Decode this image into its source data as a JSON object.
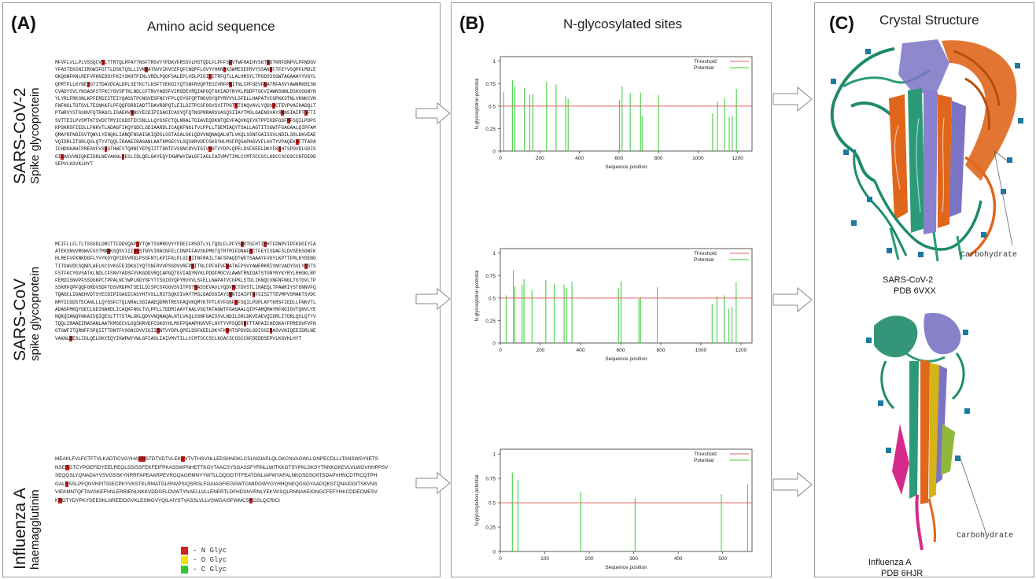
{
  "panels": {
    "a": {
      "letter": "(A)",
      "title": "Amino acid sequence"
    },
    "b": {
      "letter": "(B)",
      "title": "N-glycosylated sites"
    },
    "c": {
      "letter": "(C)",
      "title": "Crystal Structure"
    }
  },
  "proteins": [
    {
      "name": "SARS-CoV-2",
      "subtitle": "Spike glycoprotein"
    },
    {
      "name": "SARS-CoV",
      "subtitle": "spike glycoprotein"
    },
    {
      "name": "Influenza A",
      "subtitle": "haemagglutinin"
    }
  ],
  "sequences": {
    "sars2": [
      "MFVFLVLLPLVSSQCVNLTTRTQLPPAYTNSFTRGVYYPDKVFRSSVLHSTQDLFLPFFSNVTWFHAIHVSGTNGTKRFDNPVLPFNDGV",
      "YFASTEKSNIIRGWIFGTTLDSKTQSLLIVNNATNVVIKVCEFQFCNDPFLGVYYHKNNKSWMESEFRVYSSANNCTFEYVSQPFLMDLE",
      "GKQGNFKNLREFVFKNIDGYFKIYSKHTPINLVRDLPQGFSALEPLVDLPIGINITRFQTLLALHRSYLTPGDSSSGWTAGAAAYYVGYL",
      "QPRTFLLKYNENGTITDAVDCALDPLSETKCTLKSFTVEKGIYQTSNFRVQPTESIVRFPNITNLCPFGEVFNATRFASVYAWNRKRISN",
      "CVADYSVLYNSASFSTFKCYGVSPTKLNDLCFTNVYADSFVIRGDEVRQIAPGQTGKIADYNYKLPDDFTGCVIAWNSNNLDSKVGGNYN",
      "YLYRLFRKSNLKPFERDISTEIYQAGSTPCNGVEGFNCYFPLQSYGFQPTNGVGYQPYRVVVLSFELLHAPATVCGPKKSTNLVKNKCVN",
      "FNFNGLTGTGVLTESNKKFLPFQQFGRDIADTTDAVRDPQTLEILDITPCSFGGVSVITPGTNTSNQVAVLYQDVNCTEVPVAIHADQLT",
      "PTWRVYSTGSNVFQTRAGCLIGAEHVNNSYECDIPIGAGICASYQTQTNSPRRARSVASQSIIAYTMSLGAENSVAYSNNSIAIPTNFTI",
      "SVTTEILPVSMTKTSVDCTMYICGDSTECSNLLLQYGSFCTQLNRALTGIAVEQDKNTQEVFAQVKQIYKTPPIKDFGGFNFSQILPDPS",
      "KPSKRSFIEDLLFNKVTLADAGFIKQYGDCLGDIAARDLICAQKFNGLTVLPPLLTDEMIAQYTSALLAGTITSGWTFGAGAALQIPFAM",
      "QMAYRFNGIGVTQNVLYENQKLIANQFNSAIGKIQDSLSSTASALGKLQDVVNQNAQALNTLVKQLSSNFGAISSVLNDILSRLDKVEAE",
      "VQIDRLITGRLQSLQTYVTQQLIRAAEIRASANLAATKMSECVLGQSKRVDFCGKGYHLMSFPQSAPHGVVFLHVTYVPAQEKNFTTAPA",
      "ICHDGKAHFPREGVFVSNGTHWFVTQRNFYEPQIITTDNTFVSGNCDVVIGIVNNTVYDPLQPELDSFKEELDKYFKNHTSPDVDLGDIS",
      "GINASVVNIQKEIDRLNEVAKNLNESLIDLQELGKYEQYIKWPWYIWLGFIAGLIAIVMVTIMLCCMTSCCSCLKGCCSCGSCCKFDEDD",
      "SEPVLKGVKLHYT"
    ],
    "sars1": [
      "MFIFLLFLTLTSGSDLDRCTTFDDVQAPNYTQHTSSMRGVYYPDEIFRSDTLYLTQDLFLPFYSNVTGFHTINHTFDNPVIPFKDGIYFA",
      "ATEKSNVVRGWVFGSTMNNKSQSVIIINNSTNVVIRACNFELCDNPFFAVSKPMGTQTHTMIFDNAFNCTFEYISDAFSLDVSEKSGNFK",
      "HLREFVFKNKDGFLYVYKGYQPIDVVRDLPSGFNTLKPIFKLPLGINITNFRAILTAFSPAQDTWGTSAAAYFVGYLKPTTFMLKYDENG",
      "TITDAVDCSQNPLAELKCSVKSFEIDKGIYQTSNFRVVPSGDVVRFPNITNLCPFGEVFNATKFPSVYAWERKRISNCVADYSVLYNSTS",
      "FSTFKCYGVSATKLNDLCFSNVYADSFVVKGDDVRQIAPGQTGVIADYNYKLPDDFMGCVLAWNTRNIDATSTGNYNYKYRYLRHGKLRP",
      "FERDISNVPFSSDGKPCTPPALNCYWPLNDYGFYTTSGIGYQPYRVVVLSFELLNAPATVCGPKLSTDLIKNQCVNFNFNGLTGTGVLTP",
      "SSKRFQPFQQFGRDVSDFTDSVRDPKTSEILDISPCSFGGVSVITPGTNASSEVAVLYQDVNCTDVSTLIHAEQLTPAWRIYSTGNNVFQ",
      "TQAGCLIGAEHVDTSYECDIPIGAGICASYHTVSLLRSTSQKSIVAYTMSLGADSSIAYSNNTIAIPTNFSISITTEVMPVSMAKTSVDC",
      "NMYICGDSTECANLLLQYGSFCTQLNRALSGIAAEQDRNTREVFAQVKQMYKTPTLKYFGGFNFSQILPDPLKPTKRSFIEDLLFNKVTL",
      "ADAGFMKQYGECLGDINARDLICAQKFNGLTVLPPLLTDDMIAAYTAALVSGTATAGWTFGAGAALQIPFAMQMAYRFNGIGVTQNVLYE",
      "NQKQIANQFNKAISQIQESLTTTSTALGKLQDVVNQNAQALNTLVKQLSSNFGAISSVLNDILSRLDKVEAEVQIDRLITGRLQSLQTYV",
      "TQQLIRAAEIRASANLAATKMSECVLGQSKRVDFCGKGYHLMSFPQAAPHGVVFLHVTYVPSQERNFTTAPAICHEGKAYFPREGVFVFN",
      "GTSWFITQRNFFSPQIITTDNTFVSGNCDVVIGIINNTVYDPLQPELDSFKEELDKYFKNHTSPDVDLGDISGINASVVNIQEEIDRLNE",
      "VAKNLNESLIDLQELGKYEQYIKWPWYVWLGFIAGLIAIVMVTILLCCMTSCCSCLKGACSCGSCCKFDEDDSEPVLKGVKLHYT"
    ],
    "flu": [
      "MEAKLFVLFCTFTVLKADTICVGYHANNSTDTVDTVLEKNVTVTHSVNLLEDSHNGKLCSLNGIAPLQLGKCNVAGWLLGNPECDLLLTANSWSYIIETS",
      "NSENGTCYPGEFIDYEELREQLSSISSFEKFEIFPKASSWPNHETTKGVTAACSYSGASSFYRNLLWITKKGTSYPKLSKSYTNNKGKEVLVLWGVHHPPSV",
      "SEQQSLYQNADAYVSVGSSKYNRRFAPEAARPEVRGQAGRMNYYWTLLDQGDTITFEATGNLIAPWYAFALNKGSDSGIITSDAPVHNCDTRCQTPH",
      "GALNSSLPFQNVHPITIGECPKYVKSTKLRMATGLRNVPSIQSRGLFGAIAGFIEGGWTGMIDGWYGYHHQNEQGSGYAADQKSTQNAIDGITSKVNS",
      "VIEKMNTQFTAVGKEFNNLERRIENLNKKVDDGFLDVWTYNAELLVLLENERTLDFHDSNVRNLYEKVKSQLRNNAKEIGNGCFEFYHKCDDECMESV",
      "KNGTYDYPKYSEESKLNREEIDGVKLESMGVYQILAIYSTVASSLVLLVSWGAISFWMCSNGSLQCRICI"
    ]
  },
  "legend": [
    {
      "glyph": "N",
      "label": "- N Glyc",
      "color": "#d42020"
    },
    {
      "glyph": "O",
      "label": "- O Glyc",
      "color": "#f2e20a"
    },
    {
      "glyph": "C",
      "label": "- C Glyc",
      "color": "#32c832"
    }
  ],
  "colors": {
    "n_glyc": "#d42020",
    "o_glyc": "#f2e20a",
    "c_glyc": "#32c832",
    "threshold": "#e06060",
    "potential": "#33cc33"
  },
  "chart_data": [
    {
      "type": "bar",
      "xlabel": "Sequence position",
      "ylabel": "N-glycosylation potential",
      "xlim": [
        0,
        1273
      ],
      "ylim": [
        0,
        1.05
      ],
      "xticks": [
        0,
        200,
        400,
        600,
        800,
        1000,
        1200
      ],
      "yticks": [
        0,
        0.25,
        0.5,
        0.75,
        1
      ],
      "threshold": 0.5,
      "legend": [
        "Threshold",
        "Potential"
      ],
      "legend_position": "top-right",
      "x": [
        17,
        61,
        74,
        122,
        149,
        165,
        234,
        282,
        331,
        343,
        603,
        616,
        657,
        709,
        717,
        801,
        1074,
        1098,
        1134,
        1158,
        1173,
        1194
      ],
      "values": [
        0.66,
        0.79,
        0.72,
        0.7,
        0.63,
        0.63,
        0.77,
        0.74,
        0.61,
        0.58,
        0.57,
        0.72,
        0.64,
        0.65,
        0.39,
        0.62,
        0.42,
        0.55,
        0.59,
        0.38,
        0.39,
        0.69
      ]
    },
    {
      "type": "bar",
      "xlabel": "Sequence position",
      "ylabel": "N-glycosylation potential",
      "xlim": [
        0,
        1255
      ],
      "ylim": [
        0,
        1.05
      ],
      "xticks": [
        0,
        200,
        400,
        600,
        800,
        1000,
        1200
      ],
      "yticks": [
        0,
        0.25,
        0.5,
        0.75,
        1
      ],
      "threshold": 0.5,
      "legend": [
        "Threshold",
        "Potential"
      ],
      "legend_position": "top-right",
      "x": [
        29,
        65,
        73,
        109,
        118,
        158,
        227,
        269,
        318,
        330,
        357,
        589,
        602,
        691,
        699,
        783,
        1056,
        1080,
        1116,
        1140,
        1155,
        1176
      ],
      "values": [
        0.53,
        0.81,
        0.63,
        0.65,
        0.71,
        0.59,
        0.7,
        0.66,
        0.65,
        0.61,
        0.68,
        0.61,
        0.69,
        0.49,
        0.51,
        0.62,
        0.43,
        0.52,
        0.53,
        0.38,
        0.4,
        0.68
      ]
    },
    {
      "type": "bar",
      "xlabel": "Sequence position",
      "ylabel": "N-glycosylation potential",
      "xlim": [
        0,
        566
      ],
      "ylim": [
        0,
        1.05
      ],
      "xticks": [
        0,
        100,
        200,
        300,
        400,
        500
      ],
      "yticks": [
        0,
        0.25,
        0.5,
        0.75,
        1
      ],
      "threshold": 0.5,
      "legend": [
        "Threshold",
        "Potential"
      ],
      "legend_position": "top-right",
      "x": [
        27,
        40,
        181,
        303,
        497,
        556
      ],
      "values": [
        0.81,
        0.73,
        0.61,
        0.55,
        0.59,
        0.69
      ]
    }
  ],
  "structures": [
    {
      "caption_line1": "SARS-CoV-2",
      "caption_line2": "PDB 6VXX",
      "carbohydrate": "Carbohydrate"
    },
    {
      "caption_line1": "Influenza A",
      "caption_line2": "PDB 6HJR",
      "carbohydrate": "Carbohydrate"
    }
  ]
}
